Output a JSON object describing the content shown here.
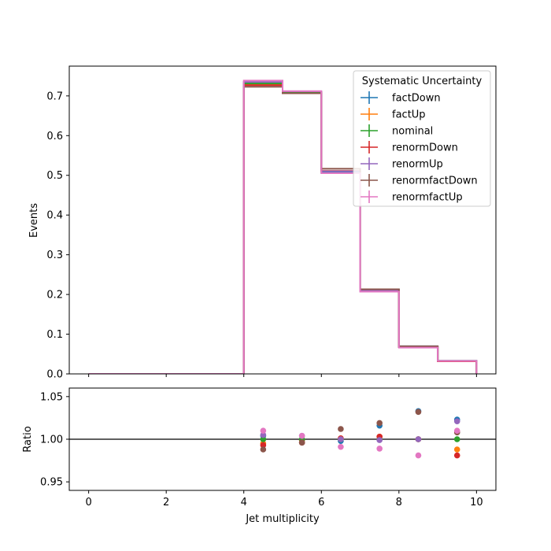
{
  "chart_data": {
    "type": "histogram-with-ratio",
    "x_label": "Jet multiplicity",
    "x_lim": [
      -0.5,
      10.5
    ],
    "x_ticks": [
      0,
      2,
      4,
      6,
      8,
      10
    ],
    "bin_edges": [
      0,
      1,
      2,
      3,
      4,
      5,
      6,
      7,
      8,
      9,
      10
    ],
    "legend": {
      "title": "Systematic Uncertainty",
      "placement": "top-right"
    },
    "main": {
      "ylabel": "Events",
      "ylim": [
        0.0,
        0.775
      ],
      "yticks": [
        0.0,
        0.1,
        0.2,
        0.3,
        0.4,
        0.5,
        0.6,
        0.7
      ],
      "ytick_labels": [
        "0.0",
        "0.1",
        "0.2",
        "0.3",
        "0.4",
        "0.5",
        "0.6",
        "0.7"
      ]
    },
    "ratio": {
      "ylabel": "Ratio",
      "ylim": [
        0.94,
        1.06
      ],
      "yticks": [
        0.95,
        1.0,
        1.05
      ],
      "ytick_labels": [
        "0.95",
        "1.00",
        "1.05"
      ],
      "reference_line": 1.0,
      "x_points": [
        4.5,
        5.5,
        6.5,
        7.5,
        8.5,
        9.5
      ]
    },
    "series": [
      {
        "name": "factDown",
        "color": "#1f77b4",
        "values": [
          0,
          0,
          0,
          0,
          0.7345,
          0.7085,
          0.5065,
          0.2125,
          0.0695,
          0.033
        ],
        "ratio": [
          1.004,
          0.999,
          0.998,
          1.016,
          1.033,
          1.023
        ]
      },
      {
        "name": "factUp",
        "color": "#ff7f0e",
        "values": [
          0,
          0,
          0,
          0,
          0.728,
          0.7085,
          0.511,
          0.21,
          0.068,
          0.0318
        ],
        "ratio": [
          0.995,
          0.999,
          1.001,
          1.003,
          1.0,
          0.988
        ]
      },
      {
        "name": "nominal",
        "color": "#2ca02c",
        "values": [
          0,
          0,
          0,
          0,
          0.7315,
          0.709,
          0.5105,
          0.2095,
          0.0675,
          0.0322
        ],
        "ratio": [
          1.0,
          1.0,
          1.0,
          1.0,
          1.0,
          1.0
        ]
      },
      {
        "name": "renormDown",
        "color": "#d62728",
        "values": [
          0,
          0,
          0,
          0,
          0.727,
          0.7065,
          0.511,
          0.2102,
          0.0675,
          0.0316
        ],
        "ratio": [
          0.993,
          0.996,
          1.001,
          1.003,
          1.0,
          0.981
        ]
      },
      {
        "name": "renormUp",
        "color": "#9467bd",
        "values": [
          0,
          0,
          0,
          0,
          0.735,
          0.7115,
          0.5105,
          0.2093,
          0.0675,
          0.0329
        ],
        "ratio": [
          1.005,
          1.004,
          1.0,
          0.999,
          1.0,
          1.021
        ]
      },
      {
        "name": "renormfactDown",
        "color": "#8c564b",
        "values": [
          0,
          0,
          0,
          0,
          0.723,
          0.7065,
          0.5165,
          0.213,
          0.0697,
          0.0326
        ],
        "ratio": [
          0.988,
          0.996,
          1.012,
          1.019,
          1.032,
          1.008
        ]
      },
      {
        "name": "renormfactUp",
        "color": "#e377c2",
        "values": [
          0,
          0,
          0,
          0,
          0.7385,
          0.712,
          0.5055,
          0.2072,
          0.0662,
          0.0325
        ],
        "ratio": [
          1.01,
          1.004,
          0.991,
          0.989,
          0.981,
          1.01
        ]
      }
    ]
  }
}
